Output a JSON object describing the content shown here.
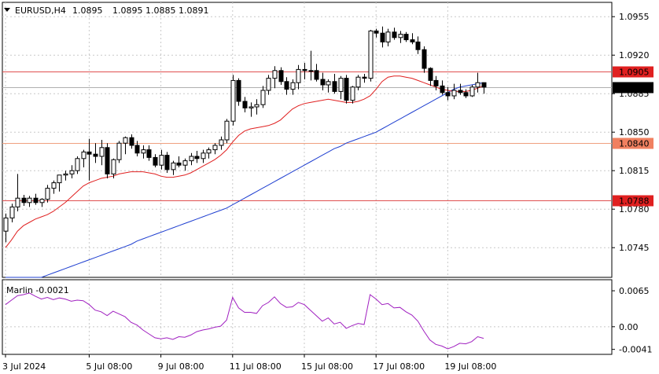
{
  "header": {
    "symbol_label": "EURUSD,H4",
    "ohlc": "1.0895 1.0885 1.0891",
    "open_value": "1.0895"
  },
  "chart_data": [
    {
      "type": "candlestick",
      "title": "EURUSD,H4",
      "ylim": [
        1.0718,
        1.0968
      ],
      "price_ticks": [
        "1.0955",
        "1.0920",
        "1.0885",
        "1.0850",
        "1.0815",
        "1.0780",
        "1.0745"
      ],
      "time_labels": [
        "3 Jul 2024",
        "5 Jul 08:00",
        "9 Jul 08:00",
        "11 Jul 08:00",
        "15 Jul 08:00",
        "17 Jul 08:00",
        "19 Jul 08:00"
      ],
      "time_label_index": [
        0,
        14,
        26,
        38,
        50,
        62,
        74
      ],
      "levels": [
        {
          "value": 1.0905,
          "label": "1.0905",
          "color": "#e05050",
          "badge": "#e02020"
        },
        {
          "value": 1.084,
          "label": "1.0840",
          "color": "#f0a080",
          "badge": "#f08060"
        },
        {
          "value": 1.0788,
          "label": "1.0788",
          "color": "#e05050",
          "badge": "#e02020"
        }
      ],
      "current_price": {
        "value": 1.0891,
        "label": "1.0891"
      },
      "candles": [
        [
          1.076,
          1.0776,
          1.075,
          1.0772
        ],
        [
          1.0772,
          1.0785,
          1.0768,
          1.0782
        ],
        [
          1.0782,
          1.0812,
          1.0778,
          1.079
        ],
        [
          1.079,
          1.0793,
          1.0783,
          1.0786
        ],
        [
          1.0786,
          1.0792,
          1.0782,
          1.079
        ],
        [
          1.079,
          1.0794,
          1.0784,
          1.0786
        ],
        [
          1.0786,
          1.079,
          1.0782,
          1.0789
        ],
        [
          1.0789,
          1.0802,
          1.0786,
          1.0799
        ],
        [
          1.0799,
          1.0806,
          1.0794,
          1.0804
        ],
        [
          1.0804,
          1.0811,
          1.0796,
          1.0811
        ],
        [
          1.0811,
          1.0815,
          1.0806,
          1.0812
        ],
        [
          1.0812,
          1.082,
          1.0808,
          1.0815
        ],
        [
          1.0815,
          1.0828,
          1.0812,
          1.0826
        ],
        [
          1.0826,
          1.0834,
          1.0818,
          1.0832
        ],
        [
          1.0832,
          1.0844,
          1.0806,
          1.083
        ],
        [
          1.083,
          1.084,
          1.0822,
          1.0828
        ],
        [
          1.0828,
          1.0843,
          1.082,
          1.0836
        ],
        [
          1.0836,
          1.084,
          1.0808,
          1.0812
        ],
        [
          1.0812,
          1.0826,
          1.0808,
          1.0825
        ],
        [
          1.0825,
          1.0842,
          1.0822,
          1.084
        ],
        [
          1.084,
          1.0846,
          1.083,
          1.0845
        ],
        [
          1.0845,
          1.0848,
          1.0835,
          1.0838
        ],
        [
          1.0838,
          1.0842,
          1.0828,
          1.0831
        ],
        [
          1.0831,
          1.0838,
          1.0826,
          1.0834
        ],
        [
          1.0834,
          1.0838,
          1.0824,
          1.0827
        ],
        [
          1.0827,
          1.083,
          1.0818,
          1.082
        ],
        [
          1.082,
          1.0834,
          1.0816,
          1.0829
        ],
        [
          1.0829,
          1.0832,
          1.0813,
          1.0816
        ],
        [
          1.0816,
          1.0824,
          1.0811,
          1.0822
        ],
        [
          1.0822,
          1.0828,
          1.0818,
          1.082
        ],
        [
          1.082,
          1.0826,
          1.0815,
          1.0824
        ],
        [
          1.0824,
          1.0831,
          1.082,
          1.0828
        ],
        [
          1.0828,
          1.0833,
          1.0822,
          1.0826
        ],
        [
          1.0826,
          1.0834,
          1.0822,
          1.0831
        ],
        [
          1.0831,
          1.0836,
          1.0826,
          1.0834
        ],
        [
          1.0834,
          1.084,
          1.083,
          1.0838
        ],
        [
          1.0838,
          1.0846,
          1.0834,
          1.0843
        ],
        [
          1.0843,
          1.0862,
          1.084,
          1.086
        ],
        [
          1.086,
          1.0902,
          1.0856,
          1.0897
        ],
        [
          1.0897,
          1.0899,
          1.0874,
          1.0878
        ],
        [
          1.0878,
          1.0882,
          1.0868,
          1.0872
        ],
        [
          1.0872,
          1.0877,
          1.0864,
          1.0873
        ],
        [
          1.0873,
          1.088,
          1.0866,
          1.0875
        ],
        [
          1.0875,
          1.0892,
          1.0872,
          1.0888
        ],
        [
          1.0888,
          1.0902,
          1.0884,
          1.0899
        ],
        [
          1.0899,
          1.091,
          1.089,
          1.0906
        ],
        [
          1.0906,
          1.0909,
          1.0893,
          1.0896
        ],
        [
          1.0896,
          1.09,
          1.0884,
          1.0889
        ],
        [
          1.0889,
          1.0898,
          1.0884,
          1.0895
        ],
        [
          1.0895,
          1.0911,
          1.0889,
          1.0907
        ],
        [
          1.0907,
          1.0913,
          1.0898,
          1.0906
        ],
        [
          1.0906,
          1.0924,
          1.0897,
          1.0906
        ],
        [
          1.0906,
          1.0912,
          1.0896,
          1.0898
        ],
        [
          1.0898,
          1.0904,
          1.0888,
          1.0893
        ],
        [
          1.0893,
          1.0898,
          1.0886,
          1.0896
        ],
        [
          1.0896,
          1.0903,
          1.0885,
          1.0887
        ],
        [
          1.0887,
          1.0901,
          1.088,
          1.0899
        ],
        [
          1.0899,
          1.0902,
          1.0876,
          1.0879
        ],
        [
          1.0879,
          1.0892,
          1.0876,
          1.0891
        ],
        [
          1.0891,
          1.0902,
          1.0888,
          1.09
        ],
        [
          1.09,
          1.0903,
          1.0895,
          1.0899
        ],
        [
          1.0899,
          1.0943,
          1.0896,
          1.0942
        ],
        [
          1.0942,
          1.0944,
          1.0936,
          1.094
        ],
        [
          1.094,
          1.0946,
          1.0927,
          1.0932
        ],
        [
          1.0932,
          1.0944,
          1.0928,
          1.0941
        ],
        [
          1.0941,
          1.0945,
          1.0934,
          1.0936
        ],
        [
          1.0936,
          1.0942,
          1.0931,
          1.0939
        ],
        [
          1.0939,
          1.0941,
          1.0932,
          1.0934
        ],
        [
          1.0934,
          1.094,
          1.093,
          1.0932
        ],
        [
          1.0932,
          1.0937,
          1.0921,
          1.0925
        ],
        [
          1.0925,
          1.0928,
          1.0904,
          1.0908
        ],
        [
          1.0908,
          1.0909,
          1.0892,
          1.0897
        ],
        [
          1.0897,
          1.0901,
          1.0888,
          1.0892
        ],
        [
          1.0892,
          1.0897,
          1.0884,
          1.0886
        ],
        [
          1.0886,
          1.0891,
          1.0879,
          1.0883
        ],
        [
          1.0883,
          1.0894,
          1.088,
          1.0888
        ],
        [
          1.0888,
          1.0894,
          1.0884,
          1.0886
        ],
        [
          1.0886,
          1.0889,
          1.0881,
          1.0883
        ],
        [
          1.0883,
          1.0893,
          1.0882,
          1.0891
        ],
        [
          1.0891,
          1.0904,
          1.0886,
          1.0895
        ],
        [
          1.0895,
          1.0895,
          1.0885,
          1.0891
        ]
      ],
      "ma_red": [
        1.0745,
        1.0752,
        1.076,
        1.0765,
        1.0768,
        1.0771,
        1.0773,
        1.0775,
        1.0778,
        1.0782,
        1.0786,
        1.0791,
        1.0796,
        1.0801,
        1.0804,
        1.0806,
        1.0808,
        1.0809,
        1.081,
        1.0812,
        1.0813,
        1.0814,
        1.0814,
        1.0814,
        1.0813,
        1.0812,
        1.081,
        1.0809,
        1.0809,
        1.081,
        1.0811,
        1.0813,
        1.0816,
        1.0819,
        1.0822,
        1.0825,
        1.0829,
        1.0834,
        1.0841,
        1.0847,
        1.0851,
        1.0853,
        1.0854,
        1.0855,
        1.0856,
        1.0858,
        1.0861,
        1.0866,
        1.0871,
        1.0874,
        1.0876,
        1.0877,
        1.0878,
        1.0879,
        1.088,
        1.0879,
        1.0878,
        1.0877,
        1.0877,
        1.0878,
        1.088,
        1.0883,
        1.0889,
        1.0896,
        1.09,
        1.0901,
        1.0901,
        1.09,
        1.0899,
        1.0897,
        1.0895,
        1.0893,
        1.0891,
        1.0889,
        1.0888,
        1.0887,
        1.0887,
        1.0887,
        1.0888,
        1.089,
        1.0892
      ],
      "ma_blue": [
        1.0706,
        1.0708,
        1.071,
        1.0712,
        1.0714,
        1.0716,
        1.0718,
        1.072,
        1.0722,
        1.0724,
        1.0726,
        1.0728,
        1.073,
        1.0732,
        1.0734,
        1.0736,
        1.0738,
        1.074,
        1.0742,
        1.0744,
        1.0746,
        1.0748,
        1.0751,
        1.0753,
        1.0755,
        1.0757,
        1.0759,
        1.0761,
        1.0763,
        1.0765,
        1.0767,
        1.0769,
        1.0771,
        1.0773,
        1.0775,
        1.0777,
        1.0779,
        1.0781,
        1.0784,
        1.0787,
        1.079,
        1.0793,
        1.0796,
        1.0799,
        1.0802,
        1.0805,
        1.0808,
        1.0811,
        1.0814,
        1.0817,
        1.082,
        1.0823,
        1.0826,
        1.0829,
        1.0832,
        1.0835,
        1.0837,
        1.084,
        1.0842,
        1.0844,
        1.0846,
        1.0848,
        1.085,
        1.0853,
        1.0856,
        1.0859,
        1.0862,
        1.0865,
        1.0868,
        1.0871,
        1.0874,
        1.0877,
        1.088,
        1.0883,
        1.0886,
        1.0889,
        1.0891,
        1.0892,
        1.0893,
        1.0894,
        1.0895
      ]
    },
    {
      "type": "line",
      "title": "Marlin -0.0021",
      "ylim": [
        -0.005,
        0.0085
      ],
      "y_ticks": [
        "0.0065",
        "0.00",
        "-0.0041"
      ],
      "values": [
        0.004,
        0.0048,
        0.0056,
        0.0058,
        0.0061,
        0.0055,
        0.005,
        0.0053,
        0.0049,
        0.0052,
        0.005,
        0.0046,
        0.0048,
        0.0047,
        0.004,
        0.003,
        0.0027,
        0.002,
        0.0028,
        0.0023,
        0.0018,
        0.0008,
        0.0003,
        -0.0006,
        -0.0013,
        -0.002,
        -0.0022,
        -0.002,
        -0.0023,
        -0.0018,
        -0.0019,
        -0.0015,
        -0.0009,
        -0.0006,
        -0.0004,
        -0.0001,
        0.0001,
        0.0012,
        0.0053,
        0.0034,
        0.0026,
        0.0026,
        0.0024,
        0.0038,
        0.0044,
        0.0054,
        0.0042,
        0.0035,
        0.0036,
        0.0044,
        0.004,
        0.003,
        0.002,
        0.001,
        0.0016,
        0.0005,
        0.0008,
        -0.0003,
        0.0002,
        0.0006,
        0.0004,
        0.0058,
        0.005,
        0.004,
        0.0042,
        0.0034,
        0.0035,
        0.0027,
        0.0021,
        0.001,
        -0.0008,
        -0.0024,
        -0.0032,
        -0.0035,
        -0.004,
        -0.0036,
        -0.003,
        -0.0031,
        -0.0027,
        -0.0018,
        -0.0021
      ]
    }
  ]
}
